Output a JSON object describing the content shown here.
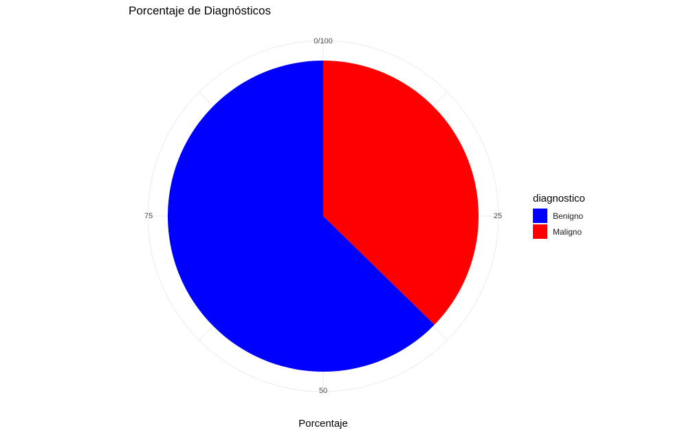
{
  "chart_data": {
    "type": "pie",
    "title": "Porcentaje de Diagnósticos",
    "xlabel": "Porcentaje",
    "ylabel": "",
    "legend_title": "diagnostico",
    "legend_position": "right",
    "theta_ticks": [
      {
        "value": 0,
        "label": "0/100"
      },
      {
        "value": 25,
        "label": "25"
      },
      {
        "value": 50,
        "label": "50"
      },
      {
        "value": 75,
        "label": "75"
      }
    ],
    "categories": [
      "Benigno",
      "Maligno"
    ],
    "values": [
      62.7,
      37.3
    ],
    "colors": [
      "#0000FF",
      "#FF0000"
    ],
    "grid": true
  }
}
